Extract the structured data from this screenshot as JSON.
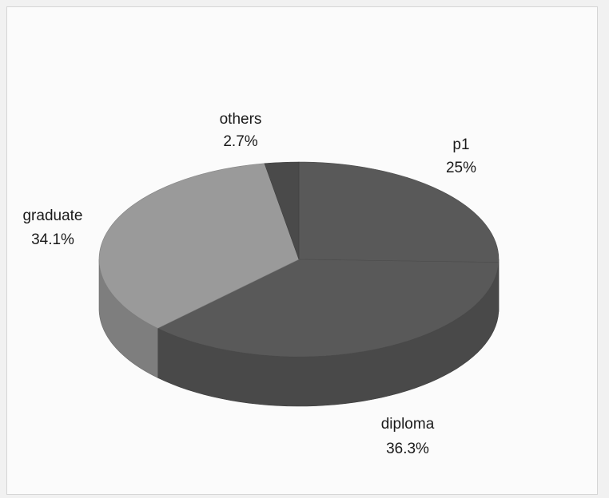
{
  "chart_data": {
    "type": "pie",
    "title": "",
    "slices": [
      {
        "label": "p1",
        "value_label": "25%",
        "value": 25,
        "color": "#595959"
      },
      {
        "label": "diploma",
        "value_label": "36.3%",
        "value": 36.3,
        "color": "#595959"
      },
      {
        "label": "graduate",
        "value_label": "34.1%",
        "value": 34.1,
        "color": "#9a9a9a"
      },
      {
        "label": "others",
        "value_label": "2.7%",
        "value": 2.7,
        "color": "#4a4a4a"
      }
    ],
    "legend": "none",
    "style": "3d"
  }
}
